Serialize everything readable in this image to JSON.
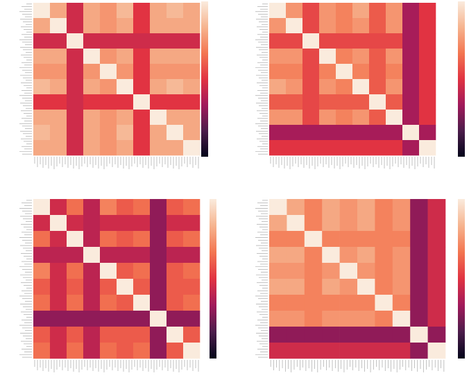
{
  "chart_data": [
    {
      "type": "heatmap",
      "clim": [
        0,
        1
      ],
      "colormap": [
        "#03051a",
        "#4c1d4b",
        "#a11a5b",
        "#e13342",
        "#f37651",
        "#f6b48f",
        "#faebdd"
      ],
      "matrix": [
        [
          1,
          0.8,
          0.45,
          0.8,
          0.75,
          0.85,
          0.5,
          0.8,
          0.85,
          0.8
        ],
        [
          0.8,
          1,
          0.45,
          0.8,
          0.75,
          0.8,
          0.5,
          0.8,
          0.8,
          0.8
        ],
        [
          0.45,
          0.45,
          1,
          0.45,
          0.45,
          0.45,
          0.45,
          0.45,
          0.45,
          0.45
        ],
        [
          0.8,
          0.8,
          0.45,
          1,
          0.75,
          0.8,
          0.5,
          0.8,
          0.8,
          0.8
        ],
        [
          0.75,
          0.75,
          0.45,
          0.75,
          1,
          0.75,
          0.5,
          0.75,
          0.75,
          0.75
        ],
        [
          0.85,
          0.8,
          0.45,
          0.8,
          0.75,
          1,
          0.5,
          0.8,
          0.85,
          0.8
        ],
        [
          0.5,
          0.5,
          0.45,
          0.5,
          0.5,
          0.5,
          1,
          0.5,
          0.5,
          0.5
        ],
        [
          0.8,
          0.8,
          0.45,
          0.8,
          0.75,
          0.8,
          0.5,
          1,
          0.8,
          0.8
        ],
        [
          0.85,
          0.8,
          0.45,
          0.8,
          0.75,
          0.85,
          0.5,
          0.8,
          1,
          0.8
        ],
        [
          0.8,
          0.8,
          0.45,
          0.8,
          0.75,
          0.8,
          0.5,
          0.8,
          0.8,
          1
        ]
      ]
    },
    {
      "type": "heatmap",
      "clim": [
        0,
        1
      ],
      "colormap": [
        "#03051a",
        "#4c1d4b",
        "#a11a5b",
        "#e13342",
        "#f37651",
        "#f6b48f",
        "#faebdd"
      ],
      "matrix": [
        [
          1,
          0.75,
          0.55,
          0.75,
          0.7,
          0.8,
          0.6,
          0.75,
          0.35,
          0.5
        ],
        [
          0.75,
          1,
          0.55,
          0.75,
          0.7,
          0.75,
          0.6,
          0.75,
          0.35,
          0.5
        ],
        [
          0.55,
          0.55,
          1,
          0.55,
          0.55,
          0.55,
          0.55,
          0.55,
          0.35,
          0.5
        ],
        [
          0.75,
          0.75,
          0.55,
          1,
          0.7,
          0.75,
          0.6,
          0.75,
          0.35,
          0.5
        ],
        [
          0.7,
          0.7,
          0.55,
          0.7,
          1,
          0.7,
          0.6,
          0.7,
          0.35,
          0.5
        ],
        [
          0.8,
          0.75,
          0.55,
          0.75,
          0.7,
          1,
          0.6,
          0.75,
          0.35,
          0.5
        ],
        [
          0.6,
          0.6,
          0.55,
          0.6,
          0.6,
          0.6,
          1,
          0.6,
          0.35,
          0.5
        ],
        [
          0.75,
          0.75,
          0.55,
          0.75,
          0.7,
          0.75,
          0.6,
          1,
          0.35,
          0.5
        ],
        [
          0.35,
          0.35,
          0.35,
          0.35,
          0.35,
          0.35,
          0.35,
          0.35,
          1,
          0.35
        ],
        [
          0.5,
          0.5,
          0.5,
          0.5,
          0.5,
          0.5,
          0.5,
          0.5,
          0.35,
          1
        ]
      ]
    },
    {
      "type": "heatmap",
      "clim": [
        0,
        1
      ],
      "colormap": [
        "#03051a",
        "#4c1d4b",
        "#a11a5b",
        "#e13342",
        "#f37651",
        "#f6b48f",
        "#faebdd"
      ],
      "matrix": [
        [
          1,
          0.45,
          0.65,
          0.4,
          0.7,
          0.6,
          0.65,
          0.3,
          0.6,
          0.65
        ],
        [
          0.45,
          1,
          0.45,
          0.4,
          0.45,
          0.45,
          0.45,
          0.3,
          0.45,
          0.45
        ],
        [
          0.65,
          0.45,
          1,
          0.4,
          0.65,
          0.6,
          0.65,
          0.3,
          0.6,
          0.65
        ],
        [
          0.4,
          0.4,
          0.4,
          1,
          0.4,
          0.4,
          0.4,
          0.3,
          0.4,
          0.4
        ],
        [
          0.7,
          0.45,
          0.65,
          0.4,
          1,
          0.6,
          0.65,
          0.3,
          0.6,
          0.65
        ],
        [
          0.6,
          0.45,
          0.6,
          0.4,
          0.6,
          1,
          0.6,
          0.3,
          0.6,
          0.6
        ],
        [
          0.65,
          0.45,
          0.65,
          0.4,
          0.65,
          0.6,
          1,
          0.3,
          0.6,
          0.65
        ],
        [
          0.3,
          0.3,
          0.3,
          0.3,
          0.3,
          0.3,
          0.3,
          1,
          0.3,
          0.3
        ],
        [
          0.6,
          0.45,
          0.6,
          0.4,
          0.6,
          0.6,
          0.6,
          0.3,
          1,
          0.6
        ],
        [
          0.65,
          0.45,
          0.65,
          0.4,
          0.65,
          0.6,
          0.65,
          0.3,
          0.6,
          1
        ]
      ]
    },
    {
      "type": "heatmap",
      "clim": [
        0,
        1
      ],
      "colormap": [
        "#03051a",
        "#4c1d4b",
        "#a11a5b",
        "#e13342",
        "#f37651",
        "#f6b48f",
        "#faebdd"
      ],
      "matrix": [
        [
          1,
          0.8,
          0.7,
          0.8,
          0.75,
          0.8,
          0.7,
          0.75,
          0.3,
          0.45
        ],
        [
          0.8,
          1,
          0.7,
          0.8,
          0.75,
          0.8,
          0.7,
          0.75,
          0.3,
          0.45
        ],
        [
          0.7,
          0.7,
          1,
          0.7,
          0.7,
          0.7,
          0.7,
          0.7,
          0.3,
          0.45
        ],
        [
          0.8,
          0.8,
          0.7,
          1,
          0.75,
          0.8,
          0.7,
          0.75,
          0.3,
          0.45
        ],
        [
          0.75,
          0.75,
          0.7,
          0.75,
          1,
          0.75,
          0.7,
          0.75,
          0.3,
          0.45
        ],
        [
          0.8,
          0.8,
          0.7,
          0.8,
          0.75,
          1,
          0.7,
          0.75,
          0.3,
          0.45
        ],
        [
          0.7,
          0.7,
          0.7,
          0.7,
          0.7,
          0.7,
          1,
          0.7,
          0.3,
          0.45
        ],
        [
          0.75,
          0.75,
          0.7,
          0.75,
          0.75,
          0.75,
          0.7,
          1,
          0.3,
          0.45
        ],
        [
          0.3,
          0.3,
          0.3,
          0.3,
          0.3,
          0.3,
          0.3,
          0.3,
          1,
          0.3
        ],
        [
          0.45,
          0.45,
          0.45,
          0.45,
          0.45,
          0.45,
          0.45,
          0.45,
          0.3,
          1
        ]
      ]
    }
  ]
}
